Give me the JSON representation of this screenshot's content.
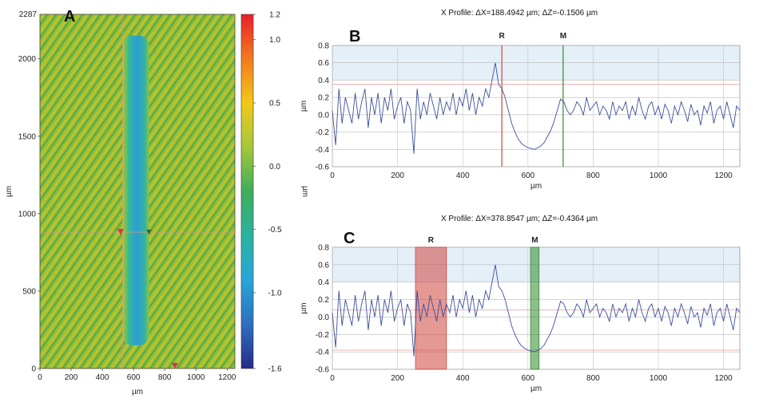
{
  "chart_data": [
    {
      "id": "A",
      "type": "heatmap",
      "panel_label": "A",
      "xlabel": "µm",
      "ylabel": "µm",
      "xlim": [
        0,
        1250
      ],
      "ylim": [
        0,
        2287
      ],
      "x_ticks": [
        "0",
        "200",
        "400",
        "600",
        "800",
        "1000",
        "1200"
      ],
      "y_ticks": [
        "0",
        "500",
        "1000",
        "1500",
        "2000"
      ],
      "y_max_label": "2287",
      "colorbar": {
        "label": "µm",
        "range": [
          -1.6,
          1.2
        ],
        "ticks": [
          "1.2",
          "1.0",
          "0.5",
          "0.0",
          "-0.5",
          "-1.0",
          "-1.6"
        ],
        "colors": [
          "#e8202a",
          "#f47a1e",
          "#f2c818",
          "#a4c83a",
          "#3fae5a",
          "#2bb3a0",
          "#27a6d8",
          "#2d6fc0",
          "#262a8a"
        ]
      },
      "features": {
        "trench_x_range_um": [
          530,
          700
        ],
        "trench_y_range_um": [
          150,
          2150
        ],
        "crosshair_x_um": 530,
        "crosshair_y_um": 880
      }
    },
    {
      "id": "B",
      "type": "line",
      "panel_label": "B",
      "title": "X Profile: ΔX=188.4942 µm; ΔZ=-0.1506 µm",
      "xlabel": "µm",
      "ylabel": "µm",
      "xlim": [
        0,
        1250
      ],
      "ylim": [
        -0.6,
        0.8
      ],
      "x_ticks": [
        "0",
        "200",
        "400",
        "600",
        "800",
        "1000",
        "1200"
      ],
      "y_ticks": [
        "0.8",
        "0.6",
        "0.4",
        "0.2",
        "0.0",
        "-0.2",
        "-0.4",
        "-0.6"
      ],
      "line_color": "#3c4f9c",
      "markers": [
        {
          "label": "R",
          "x": 520,
          "color": "#d0453e"
        },
        {
          "label": "M",
          "x": 708,
          "color": "#2f8a2f"
        }
      ],
      "ref_lines_y": [
        0.35
      ]
    },
    {
      "id": "C",
      "type": "line",
      "panel_label": "C",
      "title": "X Profile: ΔX=378.8547 µm; ΔZ=-0.4364 µm",
      "xlabel": "µm",
      "ylabel": "µm",
      "xlim": [
        0,
        1250
      ],
      "ylim": [
        -0.6,
        0.8
      ],
      "x_ticks": [
        "0",
        "200",
        "400",
        "600",
        "800",
        "1000",
        "1200"
      ],
      "y_ticks": [
        "0.8",
        "0.6",
        "0.4",
        "0.2",
        "0.0",
        "-0.2",
        "-0.4",
        "-0.6"
      ],
      "line_color": "#3c4f9c",
      "markers": [
        {
          "label": "R",
          "x_range": [
            255,
            350
          ],
          "color": "#d0453e"
        },
        {
          "label": "M",
          "x_range": [
            608,
            634
          ],
          "color": "#2f8a2f"
        }
      ],
      "ref_lines_y": [
        0.08,
        -0.38
      ]
    }
  ],
  "profile": {
    "x": [
      0,
      10,
      20,
      30,
      40,
      50,
      60,
      70,
      80,
      90,
      100,
      110,
      120,
      130,
      140,
      150,
      160,
      170,
      180,
      190,
      200,
      210,
      220,
      230,
      240,
      250,
      260,
      270,
      280,
      290,
      300,
      310,
      320,
      330,
      340,
      350,
      360,
      370,
      380,
      390,
      400,
      410,
      420,
      430,
      440,
      450,
      460,
      470,
      480,
      490,
      500,
      510,
      520,
      530,
      540,
      550,
      560,
      570,
      580,
      590,
      600,
      610,
      620,
      630,
      640,
      650,
      660,
      670,
      680,
      690,
      700,
      710,
      720,
      730,
      740,
      750,
      760,
      770,
      780,
      790,
      800,
      810,
      820,
      830,
      840,
      850,
      860,
      870,
      880,
      890,
      900,
      910,
      920,
      930,
      940,
      950,
      960,
      970,
      980,
      990,
      1000,
      1010,
      1020,
      1030,
      1040,
      1050,
      1060,
      1070,
      1080,
      1090,
      1100,
      1110,
      1120,
      1130,
      1140,
      1150,
      1160,
      1170,
      1180,
      1190,
      1200,
      1210,
      1220,
      1230,
      1240,
      1250
    ],
    "z": [
      0.05,
      -0.35,
      0.3,
      -0.1,
      0.2,
      0.05,
      -0.1,
      0.25,
      -0.05,
      0.15,
      0.3,
      -0.15,
      0.2,
      0.0,
      0.25,
      -0.1,
      0.2,
      0.05,
      0.3,
      -0.05,
      0.1,
      0.2,
      -0.1,
      0.15,
      0.05,
      -0.45,
      0.3,
      -0.05,
      0.15,
      0.0,
      0.25,
      0.1,
      -0.05,
      0.2,
      0.0,
      0.15,
      0.05,
      0.25,
      0.0,
      0.2,
      0.1,
      0.3,
      0.05,
      0.25,
      0.0,
      0.2,
      0.1,
      0.3,
      0.2,
      0.4,
      0.6,
      0.35,
      0.3,
      0.2,
      0.05,
      -0.1,
      -0.2,
      -0.28,
      -0.33,
      -0.36,
      -0.38,
      -0.39,
      -0.4,
      -0.38,
      -0.36,
      -0.32,
      -0.25,
      -0.18,
      -0.08,
      0.05,
      0.18,
      0.15,
      0.05,
      0.0,
      0.05,
      0.15,
      0.1,
      0.0,
      0.2,
      0.05,
      0.1,
      0.15,
      0.0,
      0.1,
      0.05,
      -0.05,
      0.15,
      0.0,
      0.1,
      0.05,
      0.15,
      -0.05,
      0.1,
      0.0,
      0.2,
      0.05,
      -0.05,
      0.1,
      0.15,
      0.0,
      0.1,
      -0.05,
      0.12,
      0.05,
      -0.1,
      0.1,
      0.0,
      0.15,
      0.05,
      -0.08,
      0.12,
      0.0,
      0.05,
      -0.12,
      0.1,
      0.02,
      0.15,
      -0.1,
      0.05,
      0.1,
      -0.05,
      0.15,
      0.0,
      -0.15,
      0.1,
      0.05
    ]
  }
}
